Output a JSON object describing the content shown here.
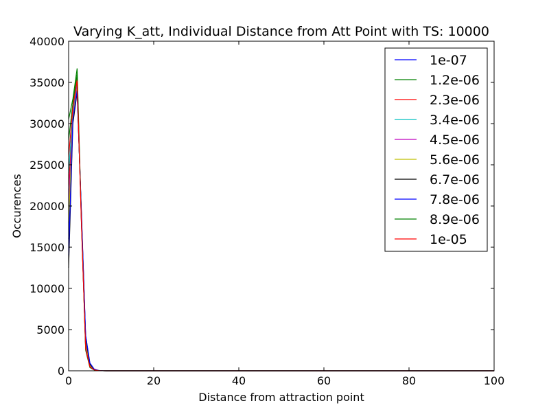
{
  "chart_data": {
    "type": "line",
    "title": "Varying K_att, Individual Distance from Att Point with TS: 10000",
    "xlabel": "Distance from attraction point",
    "ylabel": "Occurences",
    "xlim": [
      0,
      100
    ],
    "ylim": [
      0,
      40000
    ],
    "xticks": [
      0,
      20,
      40,
      60,
      80,
      100
    ],
    "yticks": [
      0,
      5000,
      10000,
      15000,
      20000,
      25000,
      30000,
      35000,
      40000
    ],
    "grid": false,
    "legend_position": "top-right",
    "x": [
      0,
      1,
      2,
      3,
      4,
      5,
      6,
      7,
      8,
      9,
      10,
      15,
      20,
      30,
      40,
      50,
      60,
      70,
      80,
      90,
      100
    ],
    "series": [
      {
        "name": "1e-07",
        "color": "#0000ff",
        "values": [
          16000,
          31000,
          34000,
          19000,
          4200,
          900,
          200,
          40,
          10,
          0,
          0,
          0,
          0,
          0,
          0,
          0,
          0,
          0,
          0,
          0,
          0
        ]
      },
      {
        "name": "1.2e-06",
        "color": "#008000",
        "values": [
          30500,
          33000,
          36700,
          18500,
          2500,
          400,
          100,
          20,
          5,
          0,
          0,
          0,
          0,
          0,
          0,
          0,
          0,
          0,
          0,
          0,
          0
        ]
      },
      {
        "name": "2.3e-06",
        "color": "#ff0000",
        "values": [
          22000,
          32000,
          35500,
          18000,
          2800,
          500,
          120,
          25,
          5,
          0,
          0,
          0,
          0,
          0,
          0,
          0,
          0,
          0,
          0,
          0,
          0
        ]
      },
      {
        "name": "3.4e-06",
        "color": "#00bfbf",
        "values": [
          24000,
          31500,
          35000,
          18300,
          3000,
          600,
          140,
          30,
          5,
          0,
          0,
          0,
          0,
          0,
          0,
          0,
          0,
          0,
          0,
          0,
          0
        ]
      },
      {
        "name": "4.5e-06",
        "color": "#bf00bf",
        "values": [
          20000,
          31000,
          34500,
          18600,
          3300,
          650,
          150,
          30,
          5,
          0,
          0,
          0,
          0,
          0,
          0,
          0,
          0,
          0,
          0,
          0,
          0
        ]
      },
      {
        "name": "5.6e-06",
        "color": "#bfbf00",
        "values": [
          18000,
          30800,
          34200,
          18800,
          3600,
          700,
          160,
          35,
          8,
          0,
          0,
          0,
          0,
          0,
          0,
          0,
          0,
          0,
          0,
          0,
          0
        ]
      },
      {
        "name": "6.7e-06",
        "color": "#000000",
        "values": [
          12500,
          30000,
          33800,
          19200,
          4000,
          800,
          180,
          40,
          10,
          0,
          0,
          0,
          0,
          0,
          0,
          0,
          0,
          0,
          0,
          0,
          0
        ]
      },
      {
        "name": "7.8e-06",
        "color": "#0000ff",
        "values": [
          14000,
          30500,
          34000,
          19400,
          4300,
          950,
          210,
          45,
          10,
          0,
          0,
          0,
          0,
          0,
          0,
          0,
          0,
          0,
          0,
          0,
          0
        ]
      },
      {
        "name": "8.9e-06",
        "color": "#008000",
        "values": [
          28000,
          32500,
          36000,
          18200,
          2600,
          450,
          110,
          20,
          5,
          0,
          0,
          0,
          0,
          0,
          0,
          0,
          0,
          0,
          0,
          0,
          0
        ]
      },
      {
        "name": "1e-05",
        "color": "#ff0000",
        "values": [
          26000,
          32000,
          35200,
          18000,
          2700,
          480,
          115,
          22,
          5,
          0,
          0,
          0,
          0,
          0,
          0,
          0,
          0,
          0,
          0,
          0,
          0
        ]
      }
    ]
  }
}
